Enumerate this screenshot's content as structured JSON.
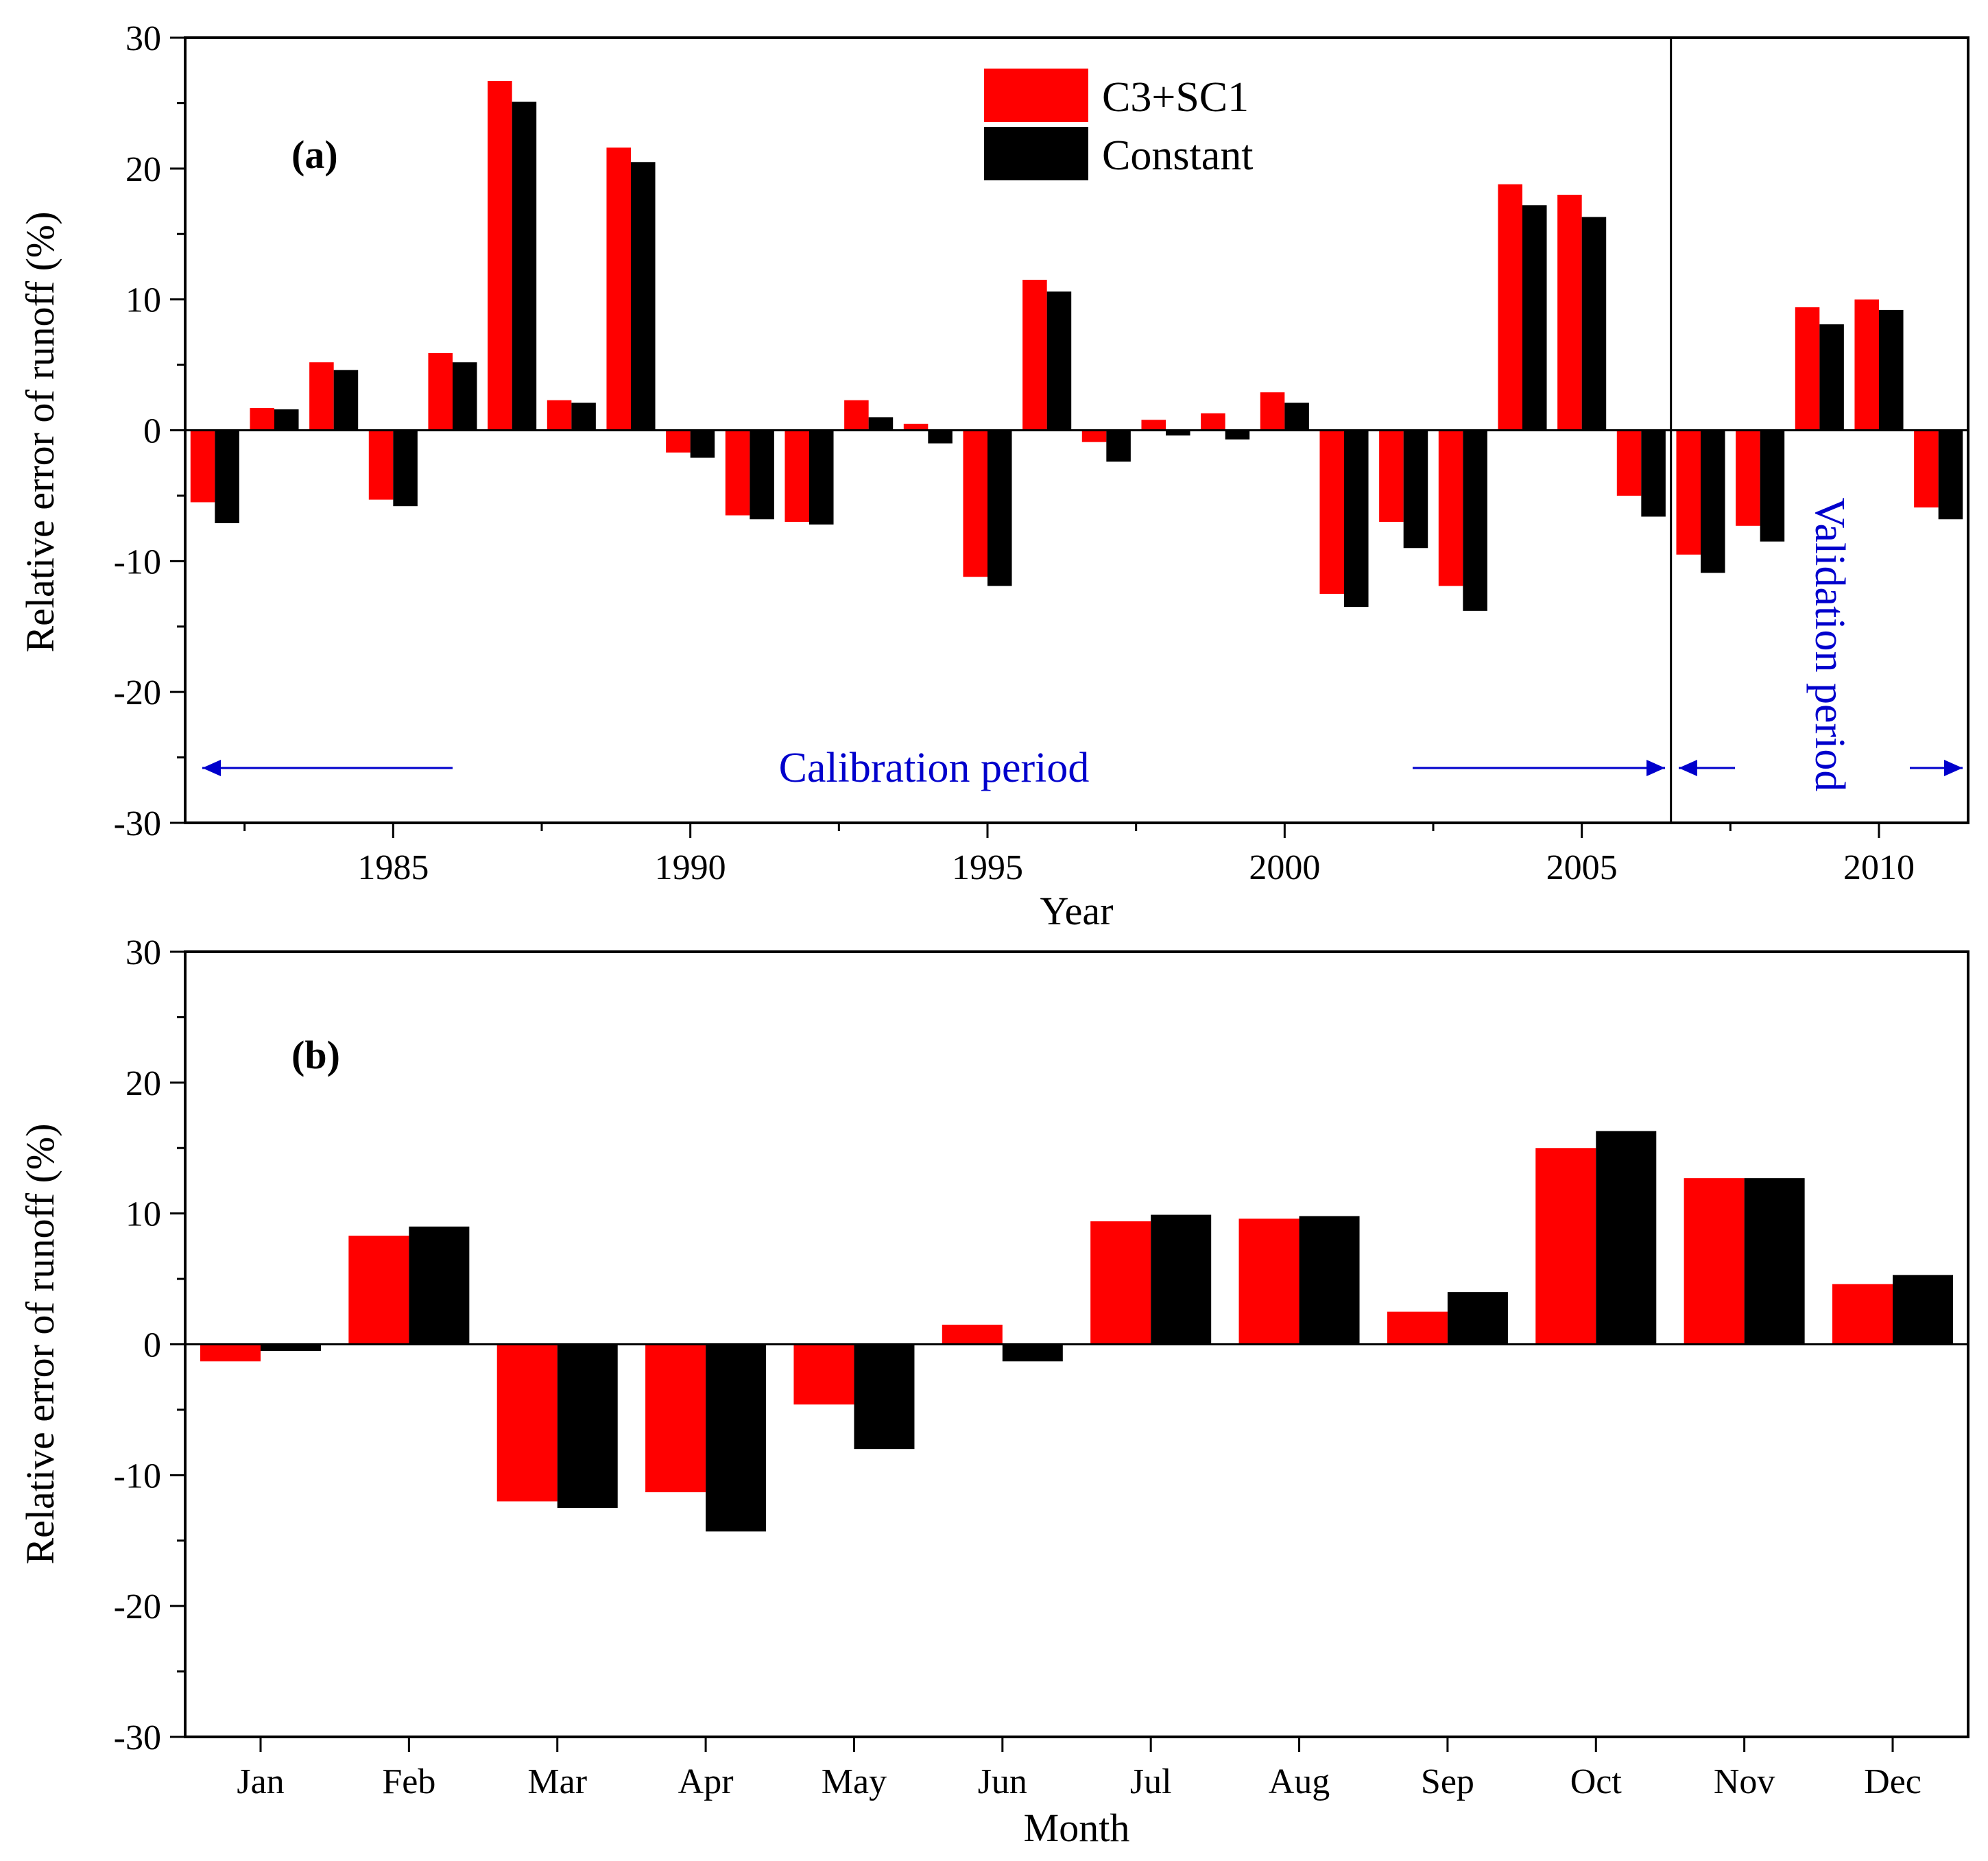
{
  "colors": {
    "series_red": "#ff0000",
    "series_black": "#000000",
    "annotation_blue": "#0000cc"
  },
  "chart_data": [
    {
      "panel": "(a)",
      "type": "bar",
      "xlabel": "Year",
      "ylabel": "Relative error of runoff (%)",
      "ylim": [
        -30,
        30
      ],
      "yticks": [
        -30,
        -20,
        -10,
        0,
        10,
        20,
        30
      ],
      "xticks": [
        1985,
        1990,
        1995,
        2000,
        2005,
        2010
      ],
      "xlim": [
        1981.5,
        2011.5
      ],
      "legend_position": "top-center",
      "calibration_label": "Calibration period",
      "validation_label": "Validation period",
      "divider_x": 2006.5,
      "x": [
        1982,
        1983,
        1984,
        1985,
        1986,
        1987,
        1988,
        1989,
        1990,
        1991,
        1992,
        1993,
        1994,
        1995,
        1996,
        1997,
        1998,
        1999,
        2000,
        2001,
        2002,
        2003,
        2004,
        2005,
        2006,
        2007,
        2008,
        2009,
        2010,
        2011
      ],
      "series": [
        {
          "name": "C3+SC1",
          "values": [
            -5.5,
            1.7,
            5.2,
            -5.3,
            5.9,
            26.7,
            2.3,
            21.6,
            -1.7,
            -6.5,
            -7.0,
            2.3,
            0.5,
            -11.2,
            11.5,
            -0.9,
            0.8,
            1.3,
            2.9,
            -12.5,
            -7.0,
            -11.9,
            18.8,
            18.0,
            -5.0,
            -9.5,
            -7.3,
            9.4,
            10.0,
            -5.9
          ]
        },
        {
          "name": "Constant",
          "values": [
            -7.1,
            1.6,
            4.6,
            -5.8,
            5.2,
            25.1,
            2.1,
            20.5,
            -2.1,
            -6.8,
            -7.2,
            1.0,
            -1.0,
            -11.9,
            10.6,
            -2.4,
            -0.4,
            -0.7,
            2.1,
            -13.5,
            -9.0,
            -13.8,
            17.2,
            16.3,
            -6.6,
            -10.9,
            -8.5,
            8.1,
            9.2,
            -6.8
          ]
        }
      ]
    },
    {
      "panel": "(b)",
      "type": "bar",
      "xlabel": "Month",
      "ylabel": "Relative error of runoff (%)",
      "ylim": [
        -30,
        30
      ],
      "yticks": [
        -30,
        -20,
        -10,
        0,
        10,
        20,
        30
      ],
      "categories": [
        "Jan",
        "Feb",
        "Mar",
        "Apr",
        "May",
        "Jun",
        "Jul",
        "Aug",
        "Sep",
        "Oct",
        "Nov",
        "Dec"
      ],
      "series": [
        {
          "name": "C3+SC1",
          "values": [
            -1.3,
            8.3,
            -12.0,
            -11.3,
            -4.6,
            1.5,
            9.4,
            9.6,
            2.5,
            15.0,
            12.7,
            4.6
          ]
        },
        {
          "name": "Constant",
          "values": [
            -0.5,
            9.0,
            -12.5,
            -14.3,
            -8.0,
            -1.3,
            9.9,
            9.8,
            4.0,
            16.3,
            12.7,
            5.3
          ]
        }
      ]
    }
  ]
}
